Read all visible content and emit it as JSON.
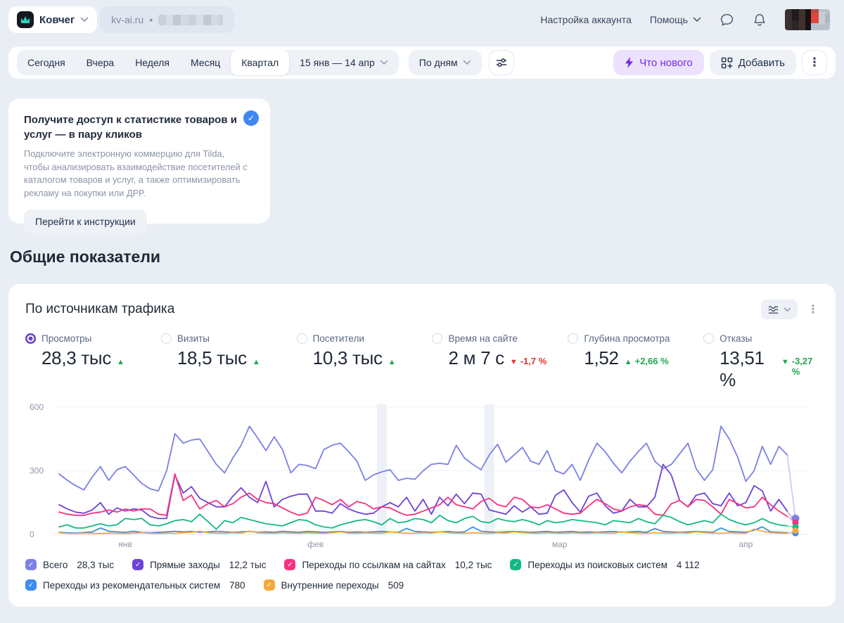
{
  "icons": {
    "kebab": "⋮",
    "check": "✓",
    "dot": "•"
  },
  "header": {
    "counter_name": "Ковчег",
    "site": "kv-ai.ru",
    "account_settings": "Настройка аккаунта",
    "help": "Помощь"
  },
  "toolbar": {
    "periods": [
      "Сегодня",
      "Вчера",
      "Неделя",
      "Месяц",
      "Квартал"
    ],
    "selected_period": "Квартал",
    "date_range": "15 янв — 14 апр",
    "granularity": "По дням",
    "whats_new": "Что нового",
    "add": "Добавить"
  },
  "promo": {
    "title": "Получите доступ к статистике товаров и услуг — в пару кликов",
    "body": "Подключите электронную коммерцию для Tilda, чтобы анализировать взаимодействие посетителей с каталогом товаров и услуг, а также оптимизировать рекламу на покупки или ДРР.",
    "button": "Перейти к инструкции"
  },
  "section_title": "Общие показатели",
  "widget": {
    "title": "По источникам трафика",
    "metrics": [
      {
        "label": "Просмотры",
        "value": "28,3 тыс",
        "arrow": "▲",
        "delta": "",
        "color": "#1da750",
        "selected": true
      },
      {
        "label": "Визиты",
        "value": "18,5 тыс",
        "arrow": "▲",
        "delta": "",
        "color": "#1da750",
        "selected": false
      },
      {
        "label": "Посетители",
        "value": "10,3 тыс",
        "arrow": "▲",
        "delta": "",
        "color": "#1da750",
        "selected": false
      },
      {
        "label": "Время на сайте",
        "value": "2 м 7 с",
        "arrow": "▼",
        "delta": "-1,7 %",
        "color": "#e0312f",
        "selected": false
      },
      {
        "label": "Глубина просмотра",
        "value": "1,52",
        "arrow": "▲",
        "delta": "+2,66 %",
        "color": "#1da750",
        "selected": false
      },
      {
        "label": "Отказы",
        "value": "13,51 %",
        "arrow": "▼",
        "delta": "-3,27 %",
        "color": "#1da750",
        "selected": false
      }
    ]
  },
  "chart_data": {
    "type": "line",
    "title": "По источникам трафика",
    "x_range": [
      "15 янв",
      "14 апр"
    ],
    "granularity": "по дням",
    "ylim": [
      0,
      600
    ],
    "y_ticks": [
      0,
      300,
      600
    ],
    "grid": "horizontal",
    "legend_position": "bottom",
    "month_labels": [
      {
        "label": "янв",
        "day": 8
      },
      {
        "label": "фев",
        "day": 31
      },
      {
        "label": "мар",
        "day": 60.5
      },
      {
        "label": "апр",
        "day": 83
      }
    ],
    "holiday_band_days": [
      39,
      52
    ],
    "series": [
      {
        "name": "Всего",
        "total": "28,3 тыс",
        "color": "#7b80e4",
        "values": [
          285,
          255,
          230,
          210,
          270,
          320,
          255,
          305,
          320,
          280,
          240,
          215,
          205,
          300,
          475,
          430,
          445,
          450,
          390,
          330,
          290,
          360,
          420,
          510,
          455,
          395,
          460,
          400,
          290,
          330,
          325,
          310,
          400,
          420,
          430,
          390,
          345,
          255,
          280,
          295,
          305,
          255,
          265,
          260,
          300,
          330,
          335,
          330,
          420,
          360,
          330,
          305,
          375,
          425,
          340,
          375,
          410,
          345,
          330,
          395,
          300,
          285,
          330,
          255,
          350,
          430,
          390,
          335,
          290,
          345,
          390,
          430,
          345,
          310,
          330,
          380,
          430,
          310,
          255,
          305,
          510,
          450,
          365,
          250,
          300,
          415,
          330,
          415,
          375,
          75
        ]
      },
      {
        "name": "Прямые заходы",
        "total": "12,2 тыс",
        "color": "#6f42d8",
        "values": [
          140,
          120,
          105,
          100,
          115,
          150,
          95,
          125,
          110,
          120,
          115,
          85,
          75,
          75,
          280,
          195,
          225,
          170,
          150,
          130,
          130,
          180,
          220,
          175,
          150,
          250,
          130,
          165,
          180,
          190,
          190,
          110,
          110,
          100,
          145,
          120,
          105,
          95,
          100,
          130,
          150,
          130,
          175,
          110,
          165,
          95,
          175,
          135,
          190,
          145,
          195,
          190,
          115,
          105,
          95,
          135,
          105,
          130,
          95,
          100,
          185,
          210,
          150,
          105,
          180,
          195,
          135,
          100,
          110,
          165,
          130,
          130,
          175,
          330,
          280,
          160,
          130,
          185,
          195,
          145,
          135,
          195,
          135,
          150,
          230,
          205,
          110,
          165,
          110,
          55
        ]
      },
      {
        "name": "Переходы по ссылкам на сайтах",
        "total": "10,2 тыс",
        "color": "#f5317f",
        "values": [
          105,
          95,
          90,
          90,
          100,
          105,
          115,
          105,
          120,
          110,
          120,
          120,
          95,
          90,
          285,
          160,
          185,
          120,
          145,
          160,
          130,
          145,
          175,
          195,
          165,
          150,
          145,
          125,
          105,
          90,
          100,
          175,
          160,
          140,
          165,
          130,
          155,
          145,
          120,
          130,
          125,
          105,
          90,
          95,
          110,
          125,
          140,
          175,
          140,
          130,
          120,
          155,
          170,
          140,
          130,
          175,
          165,
          130,
          125,
          140,
          120,
          100,
          95,
          100,
          135,
          165,
          145,
          120,
          110,
          130,
          140,
          135,
          95,
          90,
          145,
          160,
          130,
          165,
          160,
          130,
          95,
          165,
          145,
          125,
          130,
          175,
          140,
          110,
          85,
          55
        ]
      },
      {
        "name": "Переходы из поисковых систем",
        "total": "4 112",
        "color": "#15b885",
        "values": [
          35,
          45,
          30,
          30,
          40,
          50,
          40,
          45,
          75,
          70,
          75,
          45,
          40,
          50,
          65,
          70,
          60,
          95,
          60,
          25,
          65,
          55,
          80,
          70,
          60,
          50,
          45,
          40,
          55,
          70,
          65,
          45,
          35,
          30,
          45,
          55,
          65,
          70,
          60,
          45,
          75,
          55,
          60,
          75,
          70,
          55,
          90,
          65,
          55,
          75,
          85,
          60,
          55,
          75,
          65,
          60,
          70,
          60,
          45,
          65,
          55,
          60,
          70,
          65,
          60,
          55,
          45,
          65,
          60,
          55,
          75,
          60,
          50,
          90,
          80,
          60,
          45,
          55,
          65,
          55,
          95,
          70,
          55,
          45,
          55,
          75,
          55,
          45,
          40,
          35
        ]
      },
      {
        "name": "Переходы из рекомендательных систем",
        "total": "780",
        "color": "#3b8df2",
        "values": [
          10,
          8,
          6,
          9,
          12,
          30,
          15,
          12,
          10,
          15,
          9,
          8,
          10,
          12,
          15,
          12,
          14,
          10,
          12,
          15,
          12,
          10,
          12,
          14,
          10,
          12,
          10,
          15,
          12,
          10,
          14,
          12,
          10,
          12,
          14,
          10,
          12,
          10,
          12,
          14,
          12,
          10,
          28,
          14,
          12,
          10,
          12,
          14,
          10,
          12,
          35,
          15,
          12,
          10,
          12,
          14,
          12,
          10,
          12,
          14,
          10,
          12,
          14,
          10,
          12,
          10,
          12,
          14,
          10,
          12,
          14,
          10,
          28,
          14,
          12,
          10,
          12,
          14,
          12,
          10,
          30,
          14,
          12,
          10,
          20,
          35,
          12,
          10,
          8,
          6
        ]
      },
      {
        "name": "Внутренние переходы",
        "total": "509",
        "color": "#f5a93c",
        "values": [
          8,
          5,
          4,
          6,
          5,
          4,
          6,
          5,
          4,
          6,
          8,
          5,
          4,
          6,
          5,
          8,
          10,
          15,
          8,
          6,
          5,
          8,
          6,
          15,
          8,
          6,
          5,
          8,
          6,
          5,
          8,
          6,
          5,
          8,
          12,
          6,
          5,
          8,
          6,
          5,
          12,
          8,
          6,
          5,
          8,
          6,
          12,
          8,
          6,
          5,
          8,
          6,
          5,
          8,
          6,
          12,
          8,
          6,
          5,
          8,
          6,
          5,
          8,
          6,
          5,
          8,
          6,
          5,
          12,
          8,
          6,
          5,
          8,
          6,
          5,
          8,
          6,
          12,
          8,
          6,
          5,
          8,
          6,
          5,
          25,
          15,
          8,
          6,
          5,
          18
        ]
      }
    ]
  }
}
